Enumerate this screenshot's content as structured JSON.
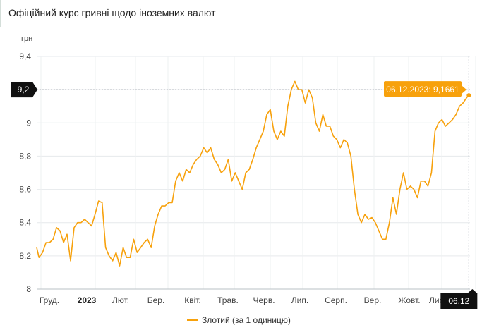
{
  "header": {
    "title": "Офіційний курс гривні щодо іноземних валют"
  },
  "chart_data": {
    "type": "line",
    "ylabel": "грн",
    "ylim": [
      8,
      9.4
    ],
    "yticks": [
      "8",
      "8,2",
      "8,4",
      "8,6",
      "8,8",
      "9",
      "9,2",
      "9,4"
    ],
    "xticks": [
      "Груд.",
      "2023",
      "Лют.",
      "Бер.",
      "Квіт.",
      "Трав.",
      "Черв.",
      "Лип.",
      "Серп.",
      "Вер.",
      "Жовт.",
      "Лист."
    ],
    "xlim": [
      "2022-12-01",
      "2023-12-07"
    ],
    "crosshair": {
      "y_label": "9,2",
      "y_value": 9.2,
      "x_label": "06.12"
    },
    "tooltip": "06.12.2023: 9,1661",
    "colors": {
      "line": "#f7a10c",
      "tooltip_bg": "#f7a10c",
      "axis_badge": "#111111"
    },
    "series": [
      {
        "name": "Злотий (за 1 одиницю)",
        "x": [
          "2022-12-01",
          "2022-12-03",
          "2022-12-06",
          "2022-12-09",
          "2022-12-12",
          "2022-12-15",
          "2022-12-18",
          "2022-12-21",
          "2022-12-24",
          "2022-12-27",
          "2022-12-30",
          "2023-01-02",
          "2023-01-05",
          "2023-01-08",
          "2023-01-11",
          "2023-01-14",
          "2023-01-17",
          "2023-01-20",
          "2023-01-23",
          "2023-01-26",
          "2023-01-29",
          "2023-02-01",
          "2023-02-04",
          "2023-02-07",
          "2023-02-10",
          "2023-02-13",
          "2023-02-16",
          "2023-02-19",
          "2023-02-22",
          "2023-02-25",
          "2023-02-28",
          "2023-03-03",
          "2023-03-06",
          "2023-03-09",
          "2023-03-12",
          "2023-03-15",
          "2023-03-18",
          "2023-03-21",
          "2023-03-24",
          "2023-03-27",
          "2023-03-30",
          "2023-04-02",
          "2023-04-05",
          "2023-04-08",
          "2023-04-11",
          "2023-04-14",
          "2023-04-17",
          "2023-04-20",
          "2023-04-23",
          "2023-04-26",
          "2023-04-29",
          "2023-05-02",
          "2023-05-05",
          "2023-05-08",
          "2023-05-11",
          "2023-05-14",
          "2023-05-17",
          "2023-05-20",
          "2023-05-23",
          "2023-05-26",
          "2023-05-29",
          "2023-06-01",
          "2023-06-04",
          "2023-06-07",
          "2023-06-10",
          "2023-06-13",
          "2023-06-16",
          "2023-06-19",
          "2023-06-22",
          "2023-06-25",
          "2023-06-28",
          "2023-07-01",
          "2023-07-04",
          "2023-07-07",
          "2023-07-10",
          "2023-07-13",
          "2023-07-16",
          "2023-07-19",
          "2023-07-22",
          "2023-07-25",
          "2023-07-28",
          "2023-07-31",
          "2023-08-03",
          "2023-08-06",
          "2023-08-09",
          "2023-08-12",
          "2023-08-15",
          "2023-08-18",
          "2023-08-21",
          "2023-08-24",
          "2023-08-27",
          "2023-08-30",
          "2023-09-02",
          "2023-09-05",
          "2023-09-08",
          "2023-09-11",
          "2023-09-14",
          "2023-09-17",
          "2023-09-20",
          "2023-09-23",
          "2023-09-26",
          "2023-09-29",
          "2023-10-02",
          "2023-10-05",
          "2023-10-08",
          "2023-10-11",
          "2023-10-14",
          "2023-10-17",
          "2023-10-20",
          "2023-10-23",
          "2023-10-26",
          "2023-10-29",
          "2023-11-01",
          "2023-11-04",
          "2023-11-07",
          "2023-11-10",
          "2023-11-13",
          "2023-11-16",
          "2023-11-19",
          "2023-11-22",
          "2023-11-25",
          "2023-11-28",
          "2023-12-01",
          "2023-12-04",
          "2023-12-06"
        ],
        "values": [
          8.25,
          8.19,
          8.22,
          8.28,
          8.28,
          8.3,
          8.37,
          8.35,
          8.28,
          8.33,
          8.17,
          8.37,
          8.4,
          8.4,
          8.42,
          8.4,
          8.38,
          8.45,
          8.53,
          8.52,
          8.25,
          8.2,
          8.17,
          8.22,
          8.14,
          8.25,
          8.19,
          8.19,
          8.3,
          8.22,
          8.25,
          8.28,
          8.3,
          8.25,
          8.38,
          8.45,
          8.5,
          8.5,
          8.52,
          8.52,
          8.65,
          8.7,
          8.65,
          8.72,
          8.7,
          8.75,
          8.78,
          8.8,
          8.85,
          8.82,
          8.85,
          8.78,
          8.75,
          8.7,
          8.72,
          8.78,
          8.65,
          8.7,
          8.65,
          8.6,
          8.7,
          8.72,
          8.78,
          8.85,
          8.9,
          8.95,
          9.05,
          9.08,
          8.95,
          8.9,
          8.95,
          8.92,
          9.1,
          9.2,
          9.25,
          9.2,
          9.2,
          9.12,
          9.2,
          9.15,
          9.0,
          8.95,
          9.05,
          8.98,
          8.98,
          8.92,
          8.9,
          8.85,
          8.9,
          8.88,
          8.8,
          8.6,
          8.45,
          8.4,
          8.45,
          8.42,
          8.43,
          8.4,
          8.35,
          8.3,
          8.3,
          8.4,
          8.55,
          8.45,
          8.6,
          8.7,
          8.6,
          8.62,
          8.6,
          8.55,
          8.65,
          8.65,
          8.62,
          8.7,
          8.95,
          9.0,
          9.02,
          8.98,
          9.0,
          9.02,
          9.05,
          9.1,
          9.12,
          9.15,
          9.1661
        ]
      }
    ]
  }
}
